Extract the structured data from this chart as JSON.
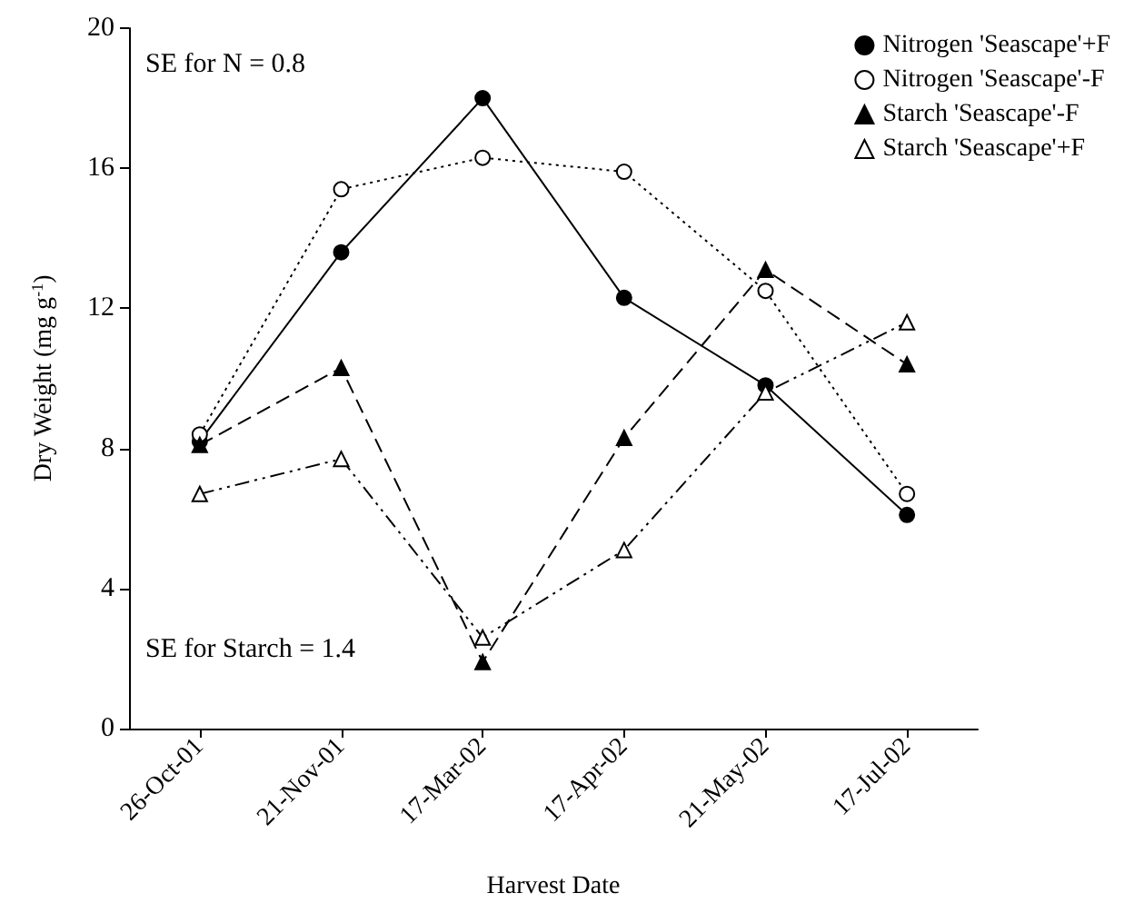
{
  "chart_data": {
    "type": "line",
    "xlabel": "Harvest Date",
    "ylabel": "Dry Weight (mg g$^{-1}$)",
    "categories": [
      "26-Oct-01",
      "21-Nov-01",
      "17-Mar-02",
      "17-Apr-02",
      "21-May-02",
      "17-Jul-02"
    ],
    "series": [
      {
        "name": "Nitrogen 'Seascape'+F",
        "color": "#000000",
        "marker": "circle",
        "line_style": "solid",
        "values": [
          8.2,
          13.6,
          18.0,
          12.3,
          9.8,
          6.1
        ]
      },
      {
        "name": "Nitrogen 'Seascape'-F",
        "color": "#000000",
        "marker": "circle",
        "colors": [
          "#ffffff",
          "#ffffff",
          "#ffffff",
          "#ffffff",
          "#ffffff",
          "#ffffff"
        ],
        "line_style": "dotted",
        "values": [
          8.4,
          15.4,
          16.3,
          15.9,
          12.5,
          6.7
        ]
      },
      {
        "name": "Starch 'Seascape'-F",
        "color": "#000000",
        "marker": "triangle",
        "line_style": "dashed",
        "values": [
          8.1,
          10.3,
          1.9,
          8.3,
          13.1,
          10.4
        ]
      },
      {
        "name": "Starch 'Seascape'+F",
        "color": "#000000",
        "marker": "triangle",
        "colors": [
          "#ffffff",
          "#ffffff",
          "#ffffff",
          "#ffffff",
          "#ffffff",
          "#ffffff"
        ],
        "line_style": "dashdot",
        "values": [
          6.7,
          7.7,
          2.6,
          5.1,
          9.6,
          11.6
        ]
      }
    ],
    "ylim": [
      0,
      20
    ],
    "yticks": [
      0,
      4,
      8,
      12,
      16,
      20
    ],
    "grid": false,
    "legend": "top right",
    "annotations": [
      "SE for N = 0.8",
      "SE for Starch = 1.4"
    ]
  }
}
